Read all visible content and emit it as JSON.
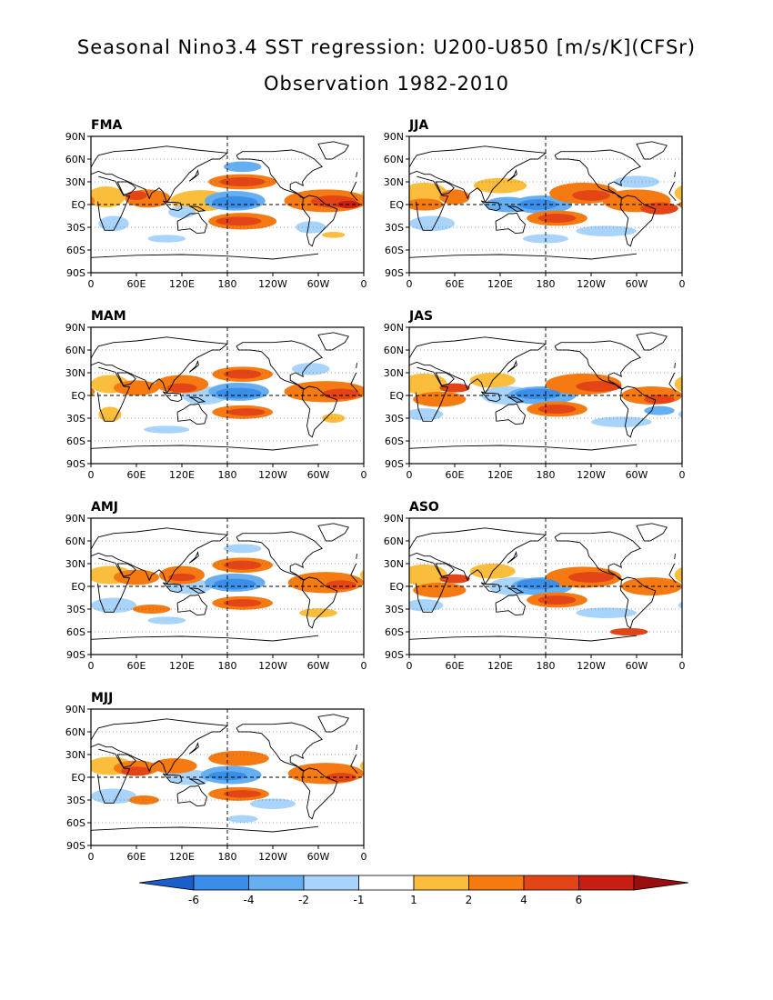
{
  "title_line1": "Seasonal Nino3.4 SST regression: U200-U850 [m/s/K](CFSr)",
  "title_line2": "Observation 1982-2010",
  "colors": {
    "neg_6": "#1e6fd6",
    "neg_4": "#3b8ee8",
    "neg_2": "#66aef2",
    "neg_1": "#a8d4fb",
    "zero": "#ffffff",
    "pos_1": "#fbbd3c",
    "pos_2": "#f67a12",
    "pos_4": "#e34516",
    "pos_6": "#c81d12",
    "pos_max": "#9a0d0d",
    "neg_min": "#1a5ec9"
  },
  "y_tick_labels": [
    "90N",
    "60N",
    "30N",
    "EQ",
    "30S",
    "60S",
    "90S"
  ],
  "x_tick_labels": [
    "0",
    "60E",
    "120E",
    "180",
    "120W",
    "60W",
    "0"
  ],
  "panels": [
    {
      "label": "FMA",
      "pattern": "fma"
    },
    {
      "label": "JJA",
      "pattern": "jja"
    },
    {
      "label": "MAM",
      "pattern": "mam"
    },
    {
      "label": "JAS",
      "pattern": "jas"
    },
    {
      "label": "AMJ",
      "pattern": "amj"
    },
    {
      "label": "ASO",
      "pattern": "aso"
    },
    {
      "label": "MJJ",
      "pattern": "mjj"
    }
  ],
  "colorbar": {
    "labels": [
      "-6",
      "-4",
      "-2",
      "-1",
      "1",
      "2",
      "4",
      "6"
    ]
  }
}
